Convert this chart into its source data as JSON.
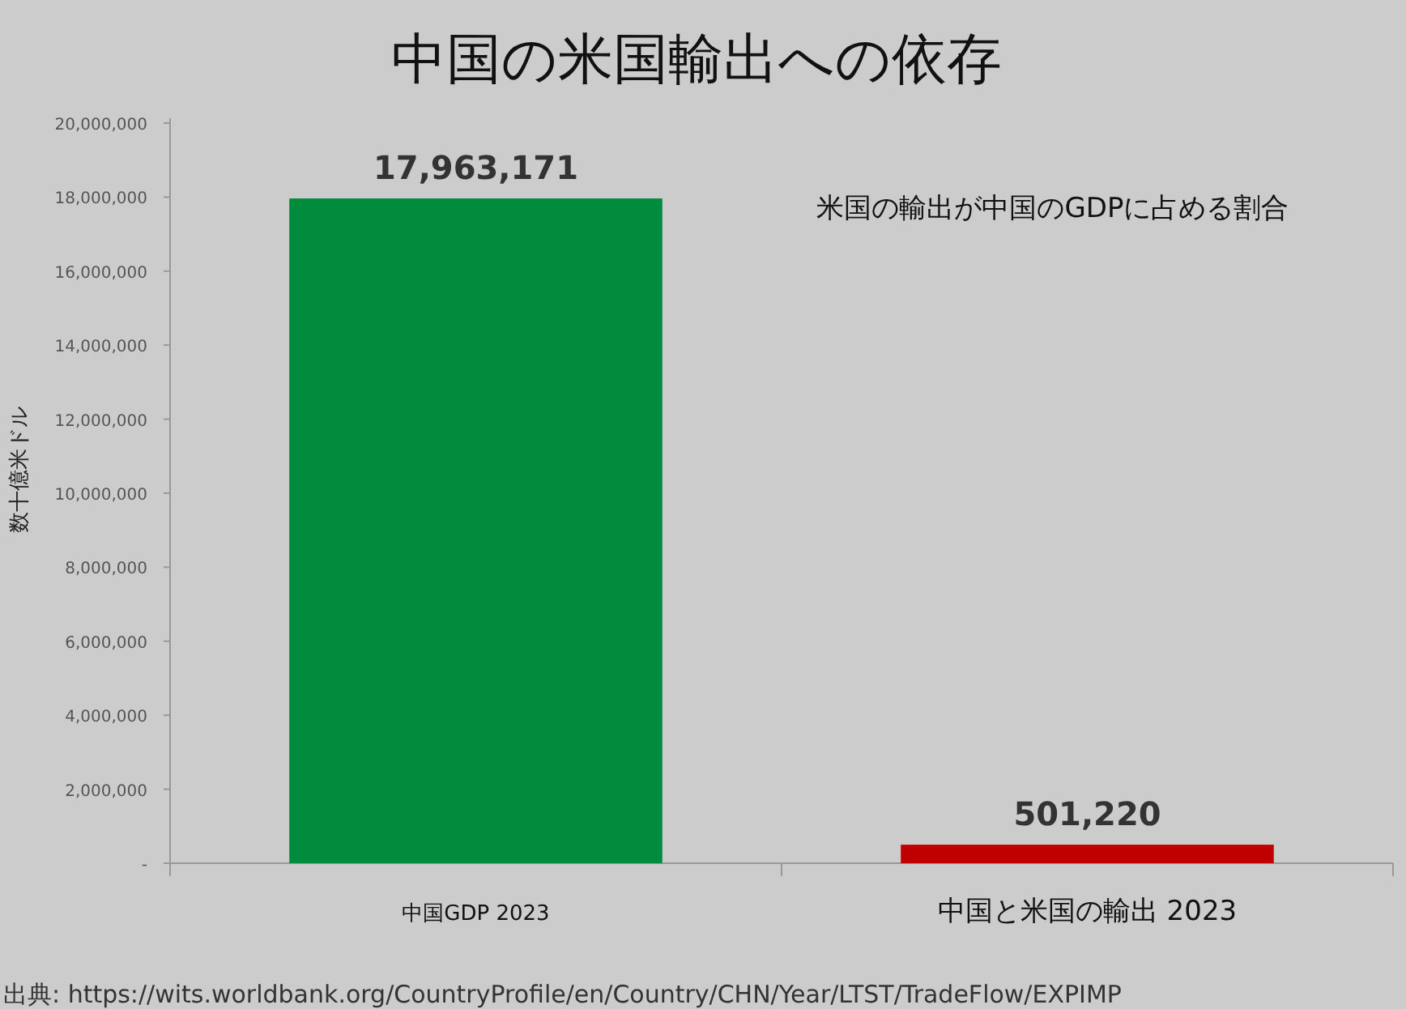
{
  "chart_data": {
    "type": "bar",
    "title": "中国の米国輸出への依存",
    "ylabel": "数十億米ドル",
    "categories": [
      "中国GDP 2023",
      "中国と米国の輸出 2023"
    ],
    "values": [
      17963171,
      501220
    ],
    "colors": [
      "#008c3c",
      "#c00000"
    ],
    "value_labels": [
      "17,963,171",
      "501,220"
    ],
    "ylim": [
      0,
      20000000
    ],
    "yticks": [
      {
        "value": 0,
        "label": "-"
      },
      {
        "value": 2000000,
        "label": "2,000,000"
      },
      {
        "value": 4000000,
        "label": "4,000,000"
      },
      {
        "value": 6000000,
        "label": "6,000,000"
      },
      {
        "value": 8000000,
        "label": "8,000,000"
      },
      {
        "value": 10000000,
        "label": "10,000,000"
      },
      {
        "value": 12000000,
        "label": "12,000,000"
      },
      {
        "value": 14000000,
        "label": "14,000,000"
      },
      {
        "value": 16000000,
        "label": "16,000,000"
      },
      {
        "value": 18000000,
        "label": "18,000,000"
      },
      {
        "value": 20000000,
        "label": "20,000,000"
      }
    ],
    "grid": false,
    "annotations": [
      "米国の輸出が中国のGDPに占める割合",
      "出典: https://wits.worldbank.org/CountryProfile/en/Country/CHN/Year/LTST/TradeFlow/EXPIMP"
    ]
  }
}
